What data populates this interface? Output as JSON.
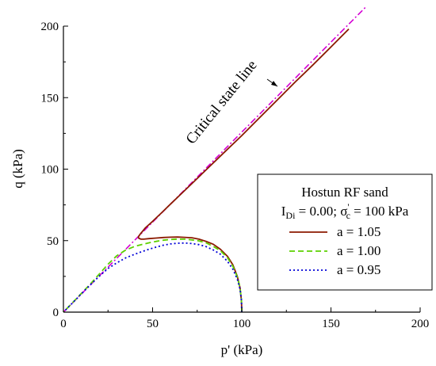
{
  "chart_data": {
    "type": "line",
    "xlabel": "p' (kPa)",
    "ylabel": "q (kPa)",
    "xlim": [
      0,
      200
    ],
    "ylim": [
      0,
      200
    ],
    "xticks": [
      0,
      50,
      100,
      150,
      200
    ],
    "yticks": [
      0,
      50,
      100,
      150,
      200
    ],
    "grid": false,
    "legend_position": "right",
    "legend_title": "Hostun RF sand",
    "legend_subtitle": {
      "i_symbol": "I",
      "i_subscript": "Di",
      "i_value": " = 0.00; ",
      "sigma_symbol": "σ",
      "sigma_prime": "'",
      "sigma_subscript": "c",
      "sigma_value": " = 100 kPa"
    },
    "annotation": "Critical state line",
    "reference_line": {
      "color": "#d400d4",
      "dash": "dashdot",
      "x": [
        0,
        170
      ],
      "y": [
        0,
        214
      ]
    },
    "series": [
      {
        "name": "a = 1.05",
        "color": "#8b1a00",
        "dash": "solid",
        "x": [
          100,
          99.8,
          99,
          97.5,
          95,
          92,
          88,
          84,
          80,
          76,
          72,
          68,
          64,
          60,
          56,
          52,
          48,
          45,
          43.5,
          42.5,
          42,
          42.2,
          42.5,
          43,
          44,
          46,
          50,
          55,
          60,
          65,
          70,
          80,
          90,
          100,
          110,
          120,
          130,
          140,
          150,
          160
        ],
        "y": [
          0,
          8,
          17,
          25,
          33,
          39,
          44,
          47.5,
          49.5,
          51,
          52,
          52.3,
          52.5,
          52.4,
          52.2,
          51.8,
          51.4,
          51,
          51,
          51.5,
          52,
          53,
          53.5,
          54.5,
          56,
          59,
          63.5,
          69.5,
          75.5,
          81.5,
          87.5,
          99.5,
          111.5,
          123.5,
          136,
          148.5,
          161,
          173,
          185.5,
          198
        ]
      },
      {
        "name": "a = 1.00",
        "color": "#5cd000",
        "dash": "dashed",
        "x": [
          100,
          99.8,
          99,
          97.5,
          95,
          92,
          88,
          84,
          80,
          76,
          72,
          68,
          64,
          60,
          56,
          52,
          48,
          44,
          40,
          35,
          30,
          25,
          20,
          15,
          10,
          5,
          0
        ],
        "y": [
          0,
          8,
          17,
          24.5,
          32,
          38,
          43,
          46,
          48.5,
          49.8,
          50.5,
          51,
          51,
          50.8,
          50.3,
          49.5,
          48.5,
          47.3,
          46,
          43.5,
          39.5,
          33.5,
          26.5,
          19.5,
          13,
          6.5,
          0
        ]
      },
      {
        "name": "a = 0.95",
        "color": "#0000d8",
        "dash": "dotted",
        "x": [
          100,
          99.8,
          99,
          97.5,
          95,
          92,
          88,
          84,
          80,
          76,
          72,
          68,
          64,
          60,
          56,
          52,
          48,
          44,
          40,
          35,
          30,
          25,
          20,
          15,
          10,
          5,
          0
        ],
        "y": [
          0,
          8,
          16,
          23,
          30,
          35.5,
          40.5,
          43.5,
          45.8,
          47.2,
          48,
          48.3,
          48.2,
          47.7,
          46.8,
          45.5,
          44,
          42.3,
          40.5,
          38,
          34.5,
          30.5,
          25,
          19,
          12.7,
          6.3,
          0
        ]
      }
    ]
  }
}
